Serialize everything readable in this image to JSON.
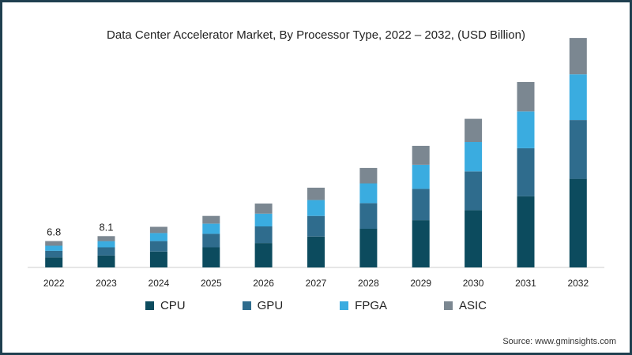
{
  "chart_data": {
    "type": "bar",
    "stacked": true,
    "title": "Data Center Accelerator Market, By Processor Type, 2022 – 2032, (USD Billion)",
    "categories": [
      "2022",
      "2023",
      "2024",
      "2025",
      "2026",
      "2027",
      "2028",
      "2029",
      "2030",
      "2031",
      "2032"
    ],
    "series": [
      {
        "name": "CPU",
        "color": "#0c4b5e",
        "values": [
          2.6,
          3.1,
          4.1,
          5.2,
          6.3,
          8.0,
          10.0,
          12.2,
          14.8,
          18.4,
          22.9
        ]
      },
      {
        "name": "GPU",
        "color": "#2f6c8d",
        "values": [
          1.7,
          2.1,
          2.7,
          3.5,
          4.3,
          5.3,
          6.6,
          8.1,
          10.0,
          12.4,
          15.2
        ]
      },
      {
        "name": "FPGA",
        "color": "#3aace0",
        "values": [
          1.3,
          1.6,
          2.1,
          2.6,
          3.3,
          4.1,
          5.1,
          6.2,
          7.6,
          9.5,
          11.8
        ]
      },
      {
        "name": "ASIC",
        "color": "#7b8791",
        "values": [
          1.2,
          1.3,
          1.6,
          2.0,
          2.6,
          3.2,
          4.0,
          4.9,
          6.0,
          7.6,
          9.4
        ]
      }
    ],
    "data_labels": {
      "2022": "6.8",
      "2023": "8.1"
    },
    "ylim": [
      0,
      64
    ],
    "legend_position": "bottom",
    "grid": false
  },
  "source": "Source: www.gminsights.com"
}
